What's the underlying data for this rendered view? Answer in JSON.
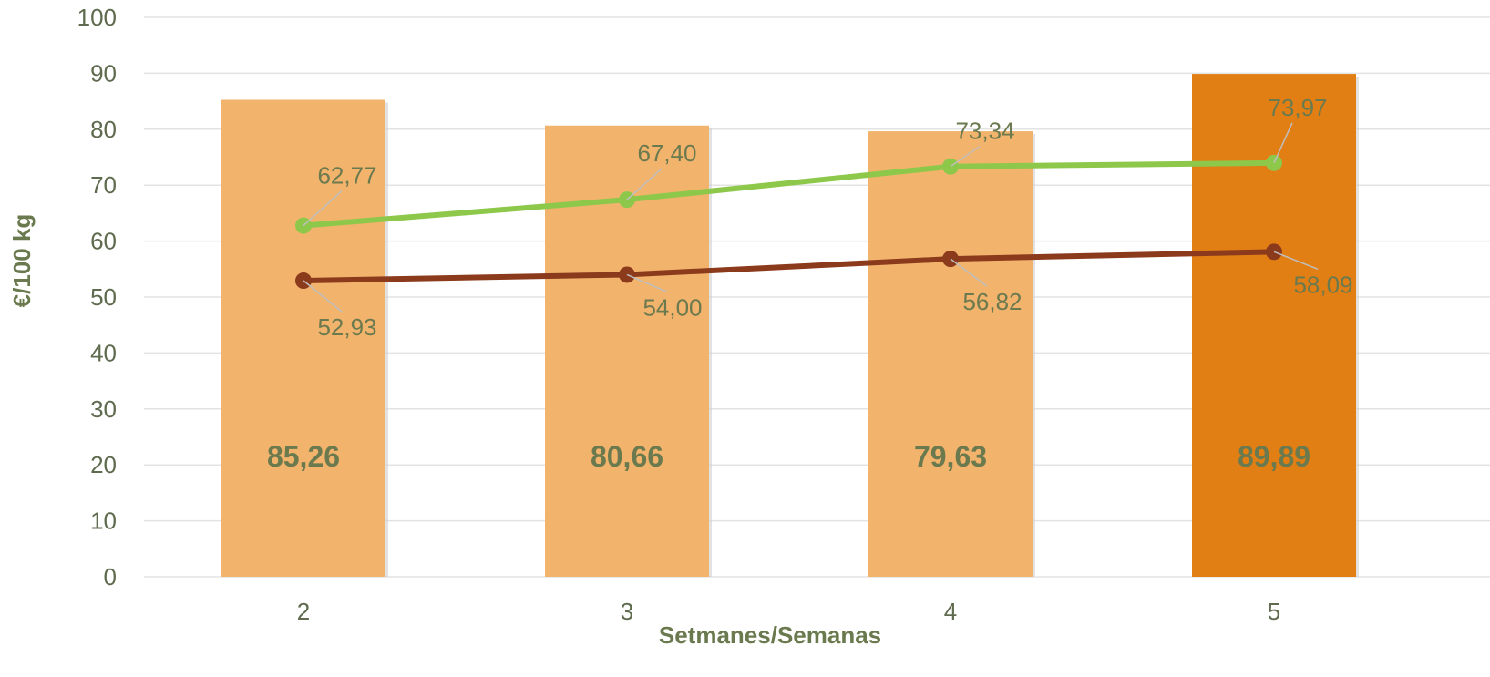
{
  "chart_data": {
    "type": "bar",
    "xlabel": "Setmanes/Semanas",
    "ylabel": "€/100 kg",
    "ylim": [
      0,
      100
    ],
    "yticks": [
      "0",
      "10",
      "20",
      "30",
      "40",
      "50",
      "60",
      "70",
      "80",
      "90",
      "100"
    ],
    "grid": true,
    "categories": [
      "2",
      "3",
      "4",
      "5"
    ],
    "bars": {
      "values": [
        85.26,
        80.66,
        79.63,
        89.89
      ],
      "labels": [
        "85,26",
        "80,66",
        "79,63",
        "89,89"
      ],
      "color": "#f2b36c",
      "highlight_color": "#e27f14",
      "highlight_index": 3
    },
    "lines": [
      {
        "values": [
          62.77,
          67.4,
          73.34,
          73.97
        ],
        "labels": [
          "62,77",
          "67,40",
          "73,34",
          "73,97"
        ],
        "color": "#8dc84b"
      },
      {
        "values": [
          52.93,
          54.0,
          56.82,
          58.09
        ],
        "labels": [
          "52,93",
          "54,00",
          "56,82",
          "58,09"
        ],
        "color": "#8b3a1c"
      }
    ],
    "text_color": "#6b7a4e"
  }
}
